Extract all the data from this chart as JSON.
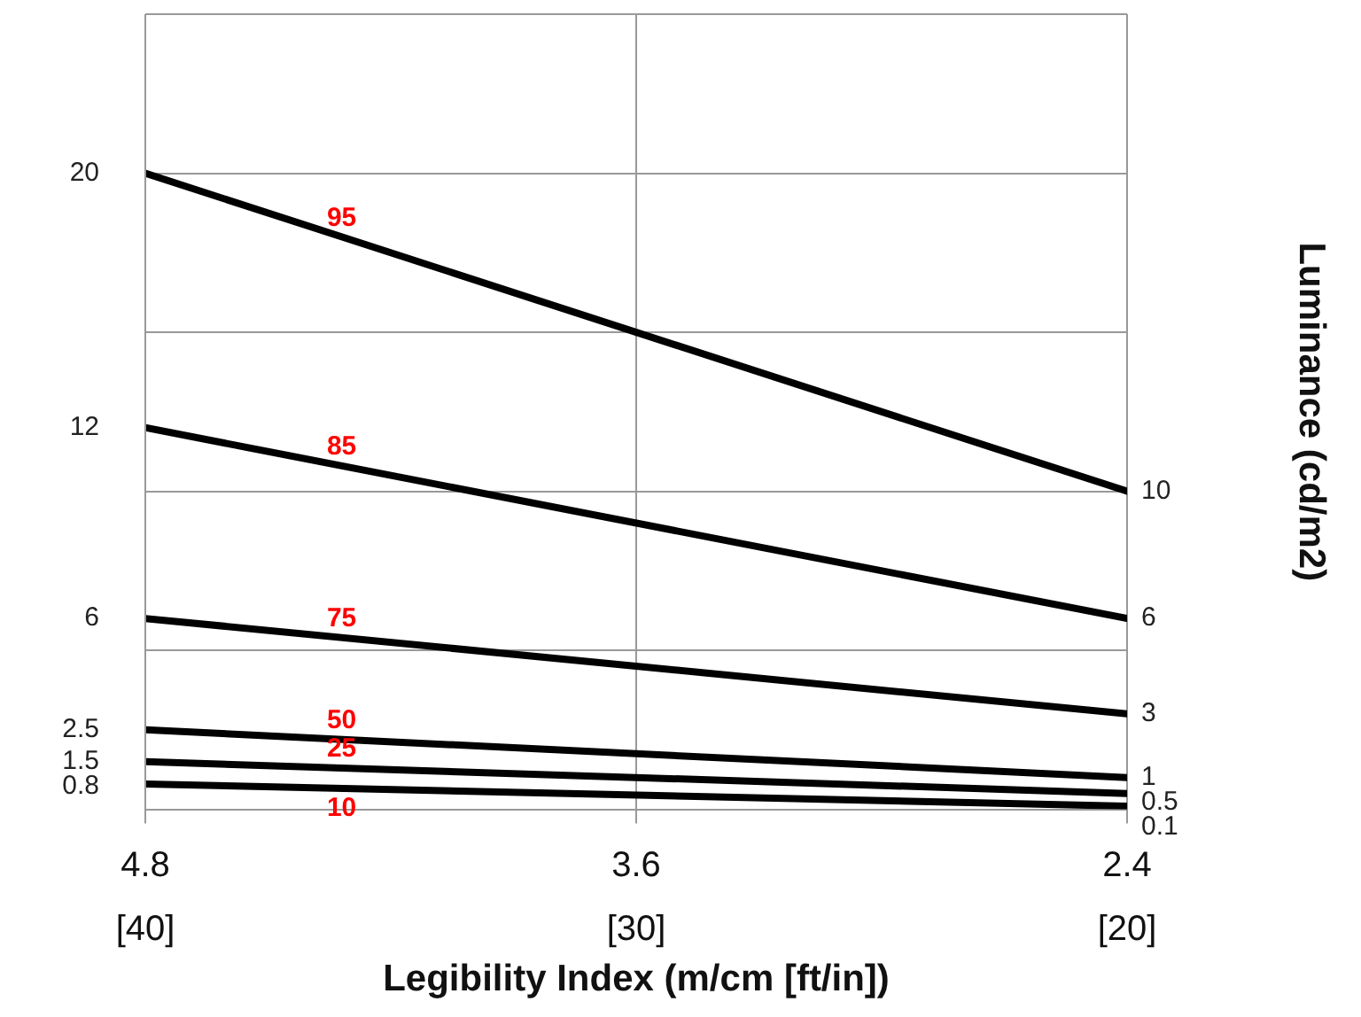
{
  "chart_data": {
    "type": "line",
    "xlabel": "Legibility Index (m/cm [ft/in])",
    "ylabel": "Luminance (cd/m2)",
    "xlim": [
      4.8,
      2.4
    ],
    "xticks": [
      4.8,
      3.6,
      2.4
    ],
    "x2lim": [
      40,
      20
    ],
    "x2ticks": [
      {
        "value": 40,
        "label": "[40]"
      },
      {
        "value": 30,
        "label": "[30]"
      },
      {
        "value": 20,
        "label": "[20]"
      }
    ],
    "ylim": [
      0,
      25
    ],
    "yticks": [
      {
        "value": 0,
        "label": null
      },
      {
        "value": 5,
        "label": null
      },
      {
        "value": 10,
        "label": null
      },
      {
        "value": 15,
        "label": null
      },
      {
        "value": 20,
        "label": null
      },
      {
        "value": 25,
        "label": null
      }
    ],
    "x": [
      4.8,
      2.4
    ],
    "grid": true,
    "legend": false,
    "marker": "none",
    "line_style": "solid",
    "tick_labels": "x",
    "series": [
      {
        "name": "95",
        "color": "#000000",
        "values": [
          20,
          10
        ],
        "value_labels": [
          "20",
          "10"
        ]
      },
      {
        "name": "85",
        "color": "#000000",
        "values": [
          12,
          6
        ],
        "value_labels": [
          "12",
          "6"
        ]
      },
      {
        "name": "75",
        "color": "#000000",
        "values": [
          6,
          3
        ],
        "value_labels": [
          "6",
          "3"
        ]
      },
      {
        "name": "50",
        "color": "#000000",
        "values": [
          2.5,
          1
        ],
        "value_labels": [
          "2.5",
          "1"
        ]
      },
      {
        "name": "25",
        "color": "#000000",
        "values": [
          1.5,
          0.5
        ],
        "value_labels": [
          "1.5",
          "0.5"
        ]
      },
      {
        "name": "10",
        "color": "#000000",
        "values": [
          0.8,
          0.1
        ],
        "value_labels": [
          "0.8",
          "0.1"
        ]
      }
    ]
  }
}
